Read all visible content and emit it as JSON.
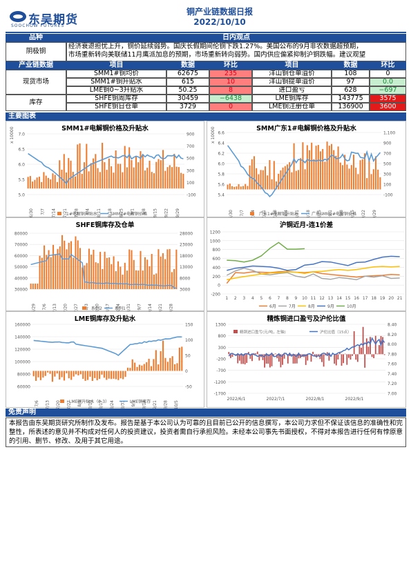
{
  "header": {
    "logo_cn": "东吴期货",
    "logo_en": "SOOCHOW FUTURES",
    "report_title": "铜产业链数据日报",
    "report_date": "2022/10/10"
  },
  "sections": {
    "variety_label": "品种",
    "daily_view_label": "日内观点",
    "chain_data_label": "产业链数据",
    "main_charts_label": "主要图表",
    "disclaimer_label": "免责声明"
  },
  "view": {
    "variety": "阴极铜",
    "text_line1": "经济衰退担忧上升，铜价延续弱势。国庆长假期间伦铜下跌1.27%。美国公布的9月非农数据超预期，",
    "text_line2": "市场重新转向美联储11月鹰派加息的预期，市场重新转向弱势。国内供应偏紧抑制沪铜跌幅。建议观望"
  },
  "table": {
    "headers": [
      "项目",
      "数据",
      "环比",
      "项目",
      "数据",
      "环比"
    ],
    "groups": [
      "现货市场",
      "库存"
    ],
    "rows": [
      [
        "SMM1#铜均价",
        "62675",
        "235",
        "洋山铜仓单溢价",
        "108",
        "0"
      ],
      [
        "SMM1#铜升贴水",
        "615",
        "10",
        "洋山铜提单溢价",
        "97",
        "0.0"
      ],
      [
        "LME铜0~3升贴水",
        "50.25",
        "8",
        "进口盈亏",
        "628",
        "−697"
      ],
      [
        "SHFE铜周库存",
        "30459",
        "−6438",
        "LME铜库存",
        "143775",
        "3575"
      ],
      [
        "SHFE铜日仓单",
        "3729",
        "0",
        "LME铜注册仓单",
        "136900",
        "3600"
      ]
    ]
  },
  "charts": {
    "c1": {
      "title": "SMM1#电解铜价格及升贴水",
      "ylabel": "x 10000",
      "left_ticks": [
        "7.0",
        "6.5",
        "6.0",
        "5.5",
        "5.0"
      ],
      "right_ticks": [
        "900",
        "700",
        "500",
        "300",
        "100",
        "-100"
      ],
      "xticks": [
        "6/30",
        "7/7",
        "7/14",
        "7/21",
        "7/28",
        "8/4",
        "8/11",
        "8/18",
        "8/25",
        "9/1",
        "9/8",
        "9/15",
        "9/22",
        "9/29"
      ],
      "legend": [
        "1#电解铜升贴水",
        "SMM1#电解铜价格"
      ]
    },
    "c2": {
      "title": "SMM广东1#电解铜价格及升贴水",
      "ylabel": "x 10000",
      "left_ticks": [
        "6.6",
        "6.4",
        "6.2",
        "6.0",
        "5.8",
        "5.6",
        "5.4"
      ],
      "right_ticks": [
        "1,100",
        "900",
        "700",
        "500",
        "300",
        "100",
        "-100"
      ],
      "xticks": [
        "6/30",
        "7/7",
        "7/14",
        "7/21",
        "7/28",
        "8/4",
        "8/11",
        "8/18",
        "8/25",
        "9/1",
        "9/8",
        "9/15",
        "9/22",
        "9/29"
      ],
      "legend": [
        "广东1#电解铜升贴水",
        "广东SMM1#电解铜价格"
      ]
    },
    "c3": {
      "title": "SHFE铜库存及仓单",
      "left_ticks": [
        "80000",
        "70000",
        "60000",
        "50000",
        "40000",
        "30000"
      ],
      "right_ticks": [
        "28000",
        "23000",
        "18000",
        "13000",
        "8000",
        "3000"
      ],
      "xticks": [
        "6/29",
        "7/6",
        "7/13",
        "7/20",
        "7/27",
        "8/3",
        "8/10",
        "8/17",
        "8/24",
        "8/31",
        "9/7",
        "9/14",
        "9/21",
        "9/28"
      ],
      "legend": [
        "系列2",
        "系列1"
      ]
    },
    "c4": {
      "title": "沪铜近月-连1价差",
      "yticks": [
        "1200",
        "1000",
        "800",
        "600",
        "400",
        "200",
        "0",
        "-200"
      ],
      "xticks": [
        "1",
        "2",
        "3",
        "4",
        "5",
        "6",
        "7",
        "8",
        "9",
        "10",
        "11",
        "12",
        "13",
        "14",
        "15",
        "16",
        "17",
        "18",
        "19",
        "20",
        "21"
      ],
      "legend": [
        "6月",
        "7月",
        "8月",
        "9月",
        "10月"
      ],
      "colors": [
        "#ed7d31",
        "#a5a5a5",
        "#ffc000",
        "#4472c4",
        "#70ad47"
      ]
    },
    "c5": {
      "title": "LME铜库存及升贴水",
      "left_ticks": [
        "160000",
        "140000",
        "120000",
        "100000",
        "80000",
        "60000"
      ],
      "right_ticks": [
        "150",
        "100",
        "50",
        "0",
        "-50"
      ],
      "xticks": [
        "7/6",
        "7/13",
        "7/20",
        "7/27",
        "8/3",
        "8/10",
        "8/17",
        "8/24",
        "8/31",
        "9/7",
        "9/14",
        "9/21",
        "9/28",
        "10/5"
      ],
      "legend": [
        "LME铜升贴水（0-3）",
        "LME铜库存"
      ]
    },
    "c6": {
      "title": "精炼铜进口盈亏及沪伦比值",
      "left_ticks": [
        "1300",
        "800",
        "300",
        "-200",
        "-700",
        "-1200",
        "-1700"
      ],
      "right_ticks": [
        "8.40",
        "8.20",
        "8.00",
        "7.80",
        "7.60",
        "7.40",
        "7.20",
        "7.00"
      ],
      "xticks": [
        "2022/6/1",
        "2022/7/1",
        "2022/8/1",
        "2022/9/1"
      ],
      "legend": [
        "精铜进口盈亏(元/吨，左轴)",
        "沪伦比值（15点）"
      ]
    }
  },
  "disclaimer": {
    "text": "本报告由东吴期货研究所制作及发布。报告是基于本公司认为可靠的且目前已公开的信息撰写，本公司力求但不保证该信息的准确性和完整性，所表述的意见并不构成对任何人的投资建议，投资者需自行承担风险。未经本公司事先书面授权，不得对本报告进行任何有悖原意的引用、删节、修改、及用于其它用途。"
  },
  "colors": {
    "brand": "#1f4e9a",
    "bar_orange": "#ed7d31",
    "line_blue": "#5b9bd5",
    "imp_bar": "#c0504d"
  }
}
